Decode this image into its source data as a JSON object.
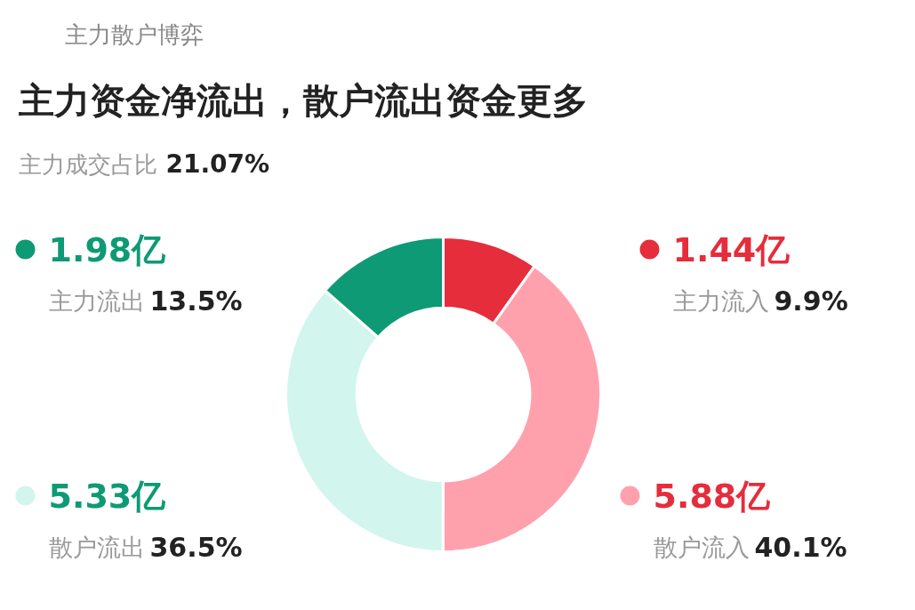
{
  "chart_data": {
    "type": "donut",
    "title": "主力资金净流出，散户流出资金更多",
    "subtitle": "主力成交占比 21.07%",
    "categories": [
      "主力流入",
      "散户流入",
      "散户流出",
      "主力流出"
    ],
    "values": [
      1.44,
      5.88,
      5.33,
      1.98
    ],
    "value_labels": [
      "1.44亿",
      "5.88亿",
      "5.33亿",
      "1.98亿"
    ],
    "legend": "left",
    "colors": [
      "#e52d3c",
      "#ffa1ad",
      "#d2f5ee",
      "#0e9a74"
    ],
    "annotations": [
      "主力散户博弈",
      {
        "text": "9.9%",
        "x": "主力流入"
      },
      {
        "text": "40.1%",
        "x": "散户流入"
      },
      {
        "text": "36.5%",
        "x": "散户流出"
      },
      {
        "text": "13.5%",
        "x": "主力流出"
      }
    ]
  }
}
